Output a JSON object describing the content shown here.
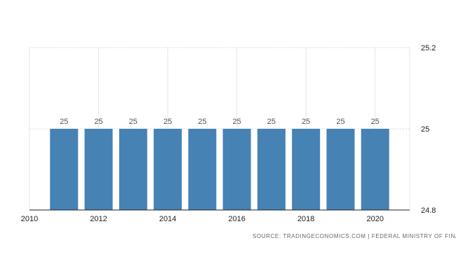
{
  "chart_data": {
    "type": "bar",
    "categories": [
      "2011",
      "2012",
      "2013",
      "2014",
      "2015",
      "2016",
      "2017",
      "2018",
      "2019",
      "2020"
    ],
    "values": [
      25,
      25,
      25,
      25,
      25,
      25,
      25,
      25,
      25,
      25
    ],
    "data_labels": [
      "25",
      "25",
      "25",
      "25",
      "25",
      "25",
      "25",
      "25",
      "25",
      "25"
    ],
    "x_ticks": [
      "2010",
      "2012",
      "2014",
      "2016",
      "2018",
      "2020"
    ],
    "x_range": [
      2010,
      2021
    ],
    "y_ticks": [
      "24.8",
      "25",
      "25.2"
    ],
    "ylim": [
      24.8,
      25.2
    ],
    "bar_color": "#4682b4",
    "grid": true,
    "y_axis_position": "right",
    "title": "",
    "xlabel": "",
    "ylabel": ""
  },
  "source": "SOURCE: TRADINGECONOMICS.COM  |  FEDERAL MINISTRY OF FINANCE"
}
